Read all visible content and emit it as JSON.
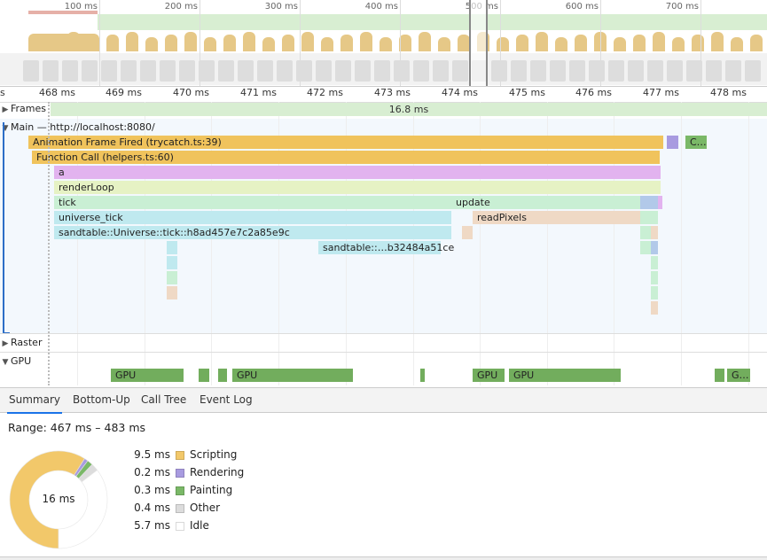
{
  "overview": {
    "ticks": [
      "100 ms",
      "200 ms",
      "300 ms",
      "400 ms",
      "500 ms",
      "600 ms",
      "700 ms"
    ]
  },
  "ruler": {
    "first": "s",
    "ticks": [
      "468 ms",
      "469 ms",
      "470 ms",
      "471 ms",
      "472 ms",
      "473 ms",
      "474 ms",
      "475 ms",
      "476 ms",
      "477 ms",
      "478 ms"
    ]
  },
  "tracks": {
    "frames": {
      "label": "Frames",
      "frame_duration": "16.8 ms"
    },
    "main": {
      "label": "Main — http://localhost:8080/"
    },
    "raster": {
      "label": "Raster"
    },
    "gpu": {
      "label": "GPU"
    }
  },
  "events": {
    "animation": "Animation Frame Fired (trycatch.ts:39)",
    "animation_c": "C…",
    "function_call": "Function Call (helpers.ts:60)",
    "a": "a",
    "render_loop": "renderLoop",
    "tick": "tick",
    "update": "update",
    "universe_tick": "universe_tick",
    "read_pixels": "readPixels",
    "sandtable_universe": "sandtable::Universe::tick::h8ad457e7c2a85e9c",
    "sandtable_short": "sandtable::…b32484a51ce",
    "gpu_labels": [
      "GPU",
      "GPU",
      "GPU",
      "GPU",
      "G…"
    ]
  },
  "tabs": [
    "Summary",
    "Bottom-Up",
    "Call Tree",
    "Event Log"
  ],
  "summary": {
    "range": "Range: 467 ms – 483 ms",
    "total": "16 ms",
    "legend": [
      {
        "value": "9.5 ms",
        "label": "Scripting",
        "color": "#f2c86a"
      },
      {
        "value": "0.2 ms",
        "label": "Rendering",
        "color": "#a89be0"
      },
      {
        "value": "0.3 ms",
        "label": "Painting",
        "color": "#7ab867"
      },
      {
        "value": "0.4 ms",
        "label": "Other",
        "color": "#dcdcdc"
      },
      {
        "value": "5.7 ms",
        "label": "Idle",
        "color": "#ffffff"
      }
    ]
  }
}
